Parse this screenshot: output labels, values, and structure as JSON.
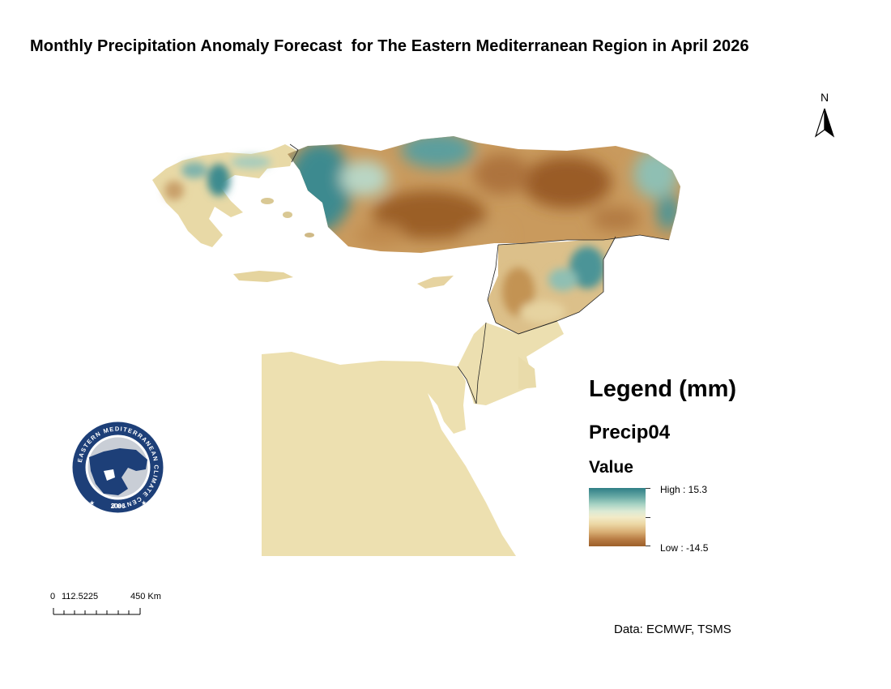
{
  "title": "Monthly Precipitation Anomaly Forecast  for The Eastern Mediterranean Region in April 2026",
  "north_arrow": {
    "label": "N"
  },
  "logo": {
    "ring_text": "EASTERN MEDITERRANEAN CLIMATE CENTRE",
    "year": "2006",
    "colors": {
      "ring": "#1d3f78",
      "inner": "#ffffff",
      "land": "#1d3f78",
      "sea": "#c9ced6"
    }
  },
  "legend": {
    "heading": "Legend (mm)",
    "layer": "Precip04",
    "field": "Value",
    "high_label": "High : 15.3",
    "low_label": "Low : -14.5",
    "high_value": 15.3,
    "low_value": -14.5,
    "ramp_colors": [
      "#2f7f86",
      "#a7d2c3",
      "#f2ebc8",
      "#d7ac72",
      "#9c5f2a"
    ]
  },
  "scale_bar": {
    "units": "Km",
    "labels": [
      "0",
      "112.5225",
      "450 Km"
    ]
  },
  "credit": "Data: ECMWF, TSMS",
  "map_colors": {
    "wet": "#3c8a8f",
    "near_normal": "#efe3b8",
    "dry": "#a8682f",
    "egypt": "#ede0b0",
    "border": "#222222"
  }
}
